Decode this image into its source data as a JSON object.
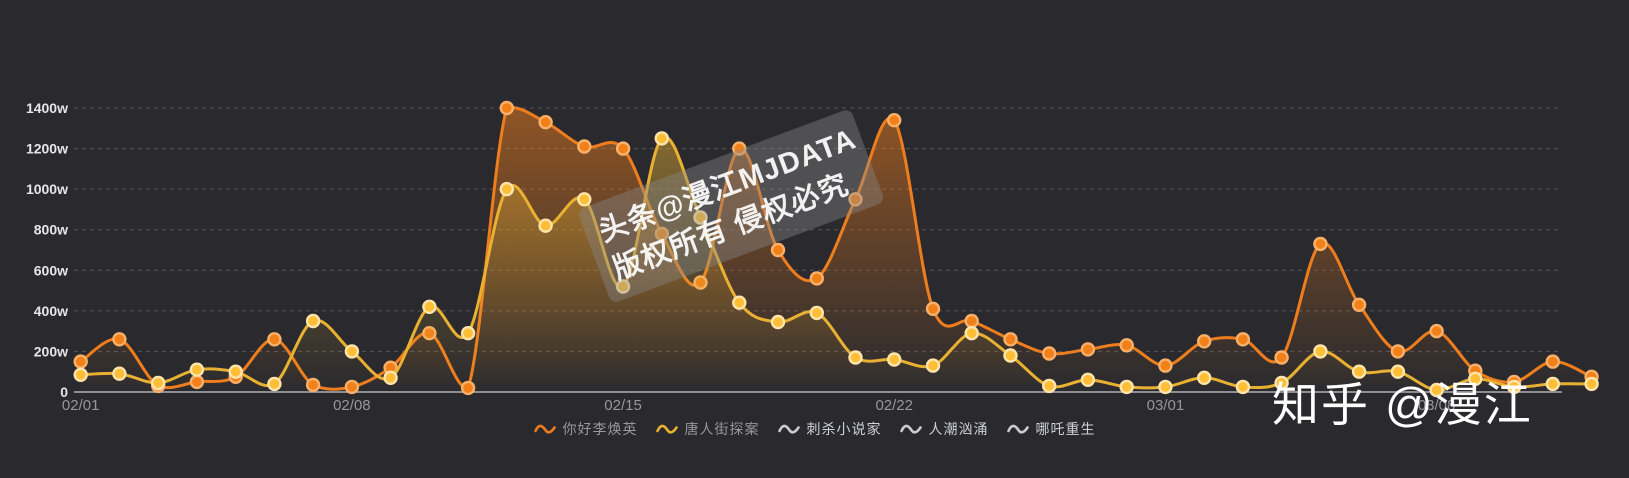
{
  "watermark_center": {
    "line1": "头条@漫江MJDATA",
    "line2": "版权所有 侵权必究"
  },
  "watermark_corner": "知乎 @漫江",
  "chart_data": {
    "type": "line",
    "title": "",
    "xlabel": "",
    "ylabel": "",
    "unit": "w",
    "smooth": true,
    "grid": "horizontal-dashed",
    "legend_position": "bottom",
    "y_axis": {
      "min": 0,
      "max": 1400,
      "interval": 200,
      "tick_labels": [
        "0",
        "200w",
        "400w",
        "600w",
        "800w",
        "1000w",
        "1200w",
        "1400w"
      ]
    },
    "x": [
      "02/01",
      "02/02",
      "02/03",
      "02/04",
      "02/05",
      "02/06",
      "02/07",
      "02/08",
      "02/09",
      "02/10",
      "02/11",
      "02/12",
      "02/13",
      "02/14",
      "02/15",
      "02/16",
      "02/17",
      "02/18",
      "02/19",
      "02/20",
      "02/21",
      "02/22",
      "02/23",
      "02/24",
      "02/25",
      "02/26",
      "02/27",
      "02/28",
      "03/01",
      "03/02",
      "03/03",
      "03/04",
      "03/05",
      "03/06",
      "03/07",
      "03/08",
      "03/09",
      "03/10",
      "03/11",
      "03/12"
    ],
    "x_ticks": [
      {
        "index": 0,
        "label": "02/01"
      },
      {
        "index": 7,
        "label": "02/08"
      },
      {
        "index": 14,
        "label": "02/15"
      },
      {
        "index": 21,
        "label": "02/22"
      },
      {
        "index": 28,
        "label": "03/01"
      },
      {
        "index": 35,
        "label": "03/08"
      }
    ],
    "series": [
      {
        "name": "你好李焕英",
        "visible": true,
        "line_color": "#ee7d1d",
        "marker_fill": "#f28019",
        "marker_stroke": "#f8b06a",
        "values": [
          150,
          260,
          30,
          50,
          75,
          260,
          35,
          25,
          120,
          290,
          20,
          1400,
          1330,
          1210,
          1200,
          780,
          540,
          1200,
          700,
          560,
          950,
          1340,
          410,
          350,
          260,
          190,
          210,
          230,
          130,
          250,
          260,
          170,
          730,
          430,
          200,
          300,
          105,
          50,
          150,
          75
        ]
      },
      {
        "name": "唐人街探案",
        "visible": true,
        "line_color": "#e9b132",
        "marker_fill": "#ffbe35",
        "marker_stroke": "#ffe4ab",
        "values": [
          85,
          90,
          45,
          110,
          100,
          40,
          350,
          200,
          70,
          420,
          290,
          1000,
          820,
          950,
          520,
          1250,
          860,
          440,
          345,
          390,
          170,
          160,
          130,
          290,
          180,
          30,
          60,
          25,
          25,
          70,
          25,
          45,
          200,
          100,
          100,
          10,
          65,
          25,
          40,
          40
        ]
      },
      {
        "name": "刺杀小说家",
        "visible": false
      },
      {
        "name": "人潮汹涌",
        "visible": false
      },
      {
        "name": "哪吒重生",
        "visible": false
      }
    ],
    "legend_items": [
      {
        "label": "你好李焕英",
        "icon_color": "#ee7d1d",
        "text_color": "#97979c",
        "selected": true
      },
      {
        "label": "唐人街探案",
        "icon_color": "#e9b132",
        "text_color": "#97979c",
        "selected": true
      },
      {
        "label": "刺杀小说家",
        "icon_color": "#cccccc",
        "text_color": "#cdd1d5",
        "selected": false
      },
      {
        "label": "人潮汹涌",
        "icon_color": "#cccccc",
        "text_color": "#cdd1d5",
        "selected": false
      },
      {
        "label": "哪吒重生",
        "icon_color": "#cccccc",
        "text_color": "#cdd1d5",
        "selected": false
      }
    ]
  },
  "colors": {
    "background": "#2a2a2e",
    "gridline": "#55555a",
    "axis_line": "#8e8e93",
    "y_label": "#e6e6e6",
    "x_label": "#96969b"
  }
}
